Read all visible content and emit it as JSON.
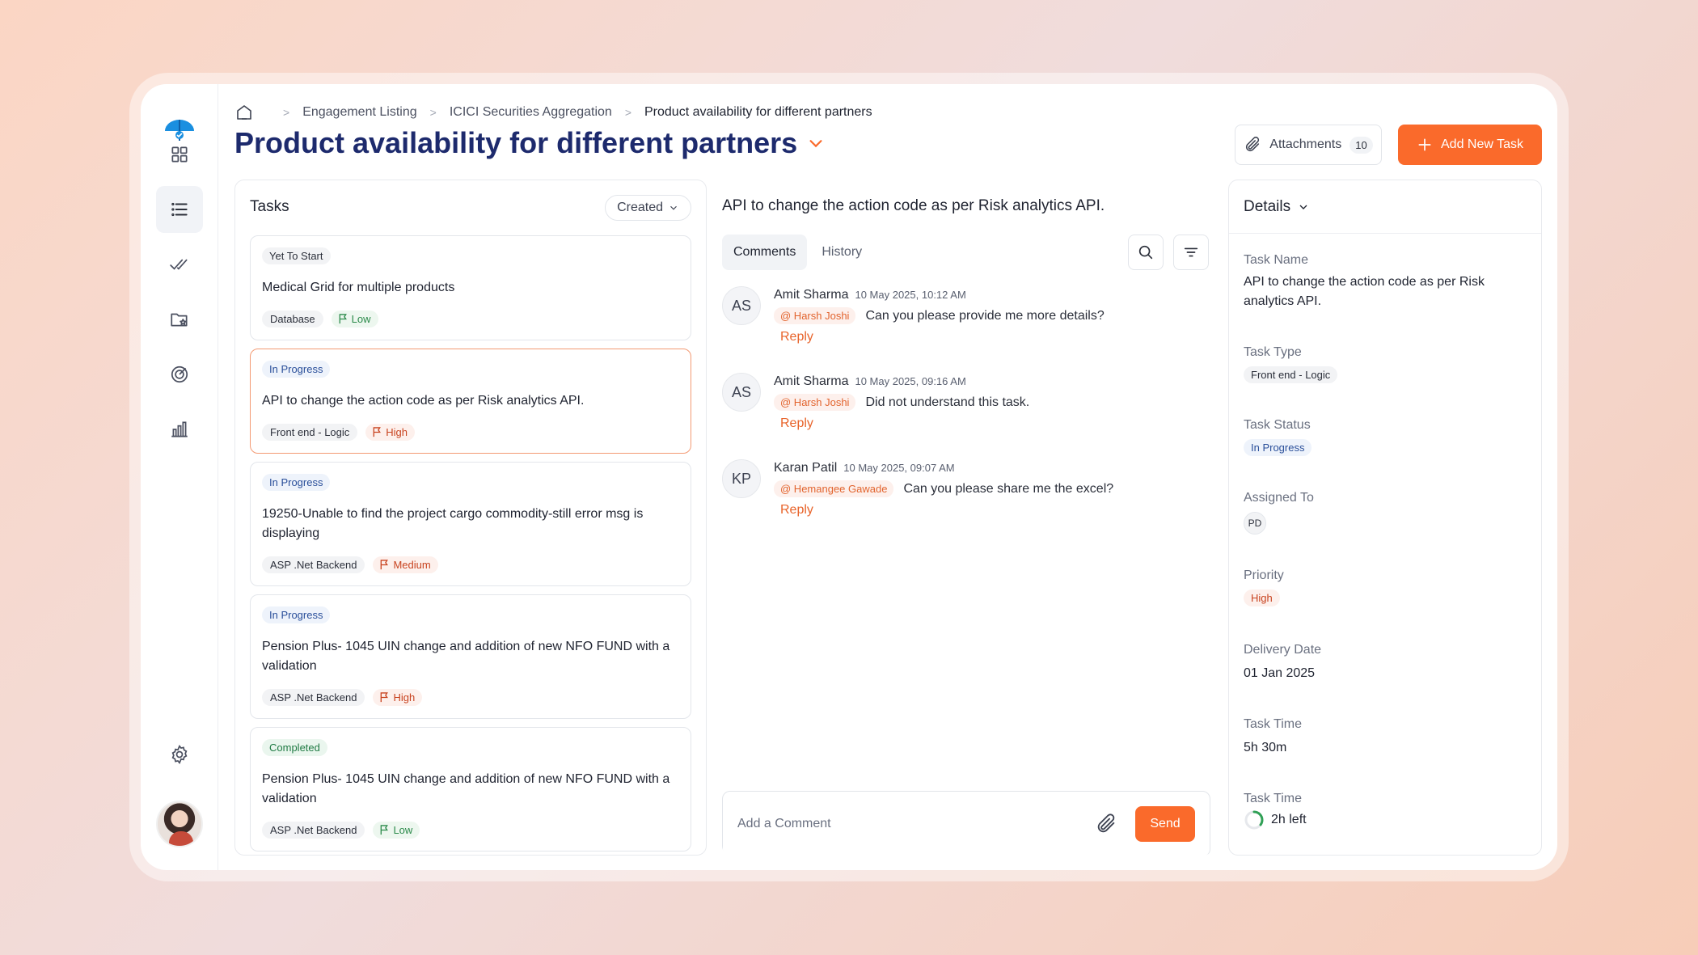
{
  "breadcrumb": [
    "Engagement Listing",
    "ICICI Securities Aggregation",
    "Product availability for different partners"
  ],
  "page_title": "Product availability for different partners",
  "header": {
    "attachments_label": "Attachments",
    "attachments_count": "10",
    "add_task_label": "Add New Task"
  },
  "tasks": {
    "title": "Tasks",
    "sort_label": "Created",
    "items": [
      {
        "status": "Yet To Start",
        "title": "Medical Grid for multiple products",
        "tag": "Database",
        "priority": "Low"
      },
      {
        "status": "In Progress",
        "title": "API to change the action code as per Risk analytics API.",
        "tag": "Front end - Logic",
        "priority": "High"
      },
      {
        "status": "In Progress",
        "title": "19250-Unable to find the project cargo commodity-still error msg is displaying",
        "tag": "ASP .Net Backend",
        "priority": "Medium"
      },
      {
        "status": "In Progress",
        "title": "Pension Plus- 1045 UIN change and addition of new NFO FUND with a validation",
        "tag": "ASP .Net Backend",
        "priority": "High"
      },
      {
        "status": "Completed",
        "title": "Pension Plus- 1045 UIN change and addition of new NFO FUND with a validation",
        "tag": "ASP .Net Backend",
        "priority": "Low"
      }
    ]
  },
  "comments_panel": {
    "title": "API to change the action code as per Risk analytics API.",
    "tabs": [
      "Comments",
      "History"
    ],
    "items": [
      {
        "initials": "AS",
        "author": "Amit Sharma",
        "time": "10 May 2025, 10:12 AM",
        "mention": "@ Harsh Joshi",
        "text": "Can you please provide me more details?",
        "reply": "Reply"
      },
      {
        "initials": "AS",
        "author": "Amit Sharma",
        "time": "10 May 2025, 09:16 AM",
        "mention": "@ Harsh Joshi",
        "text": "Did not understand this task.",
        "reply": "Reply"
      },
      {
        "initials": "KP",
        "author": "Karan Patil",
        "time": "10 May 2025, 09:07 AM",
        "mention": "@ Hemangee Gawade",
        "text": "Can you please share me the excel?",
        "reply": "Reply"
      }
    ],
    "composer_placeholder": "Add a Comment",
    "send_label": "Send"
  },
  "details": {
    "title": "Details",
    "task_name_label": "Task Name",
    "task_name": "API to change the action code as per Risk analytics API.",
    "task_type_label": "Task Type",
    "task_type": "Front end - Logic",
    "task_status_label": "Task Status",
    "task_status": "In Progress",
    "assigned_label": "Assigned To",
    "assigned": "PD",
    "priority_label": "Priority",
    "priority": "High",
    "delivery_label": "Delivery Date",
    "delivery": "01 Jan 2025",
    "task_time_label": "Task Time",
    "task_time": "5h 30m",
    "task_time2_label": "Task Time",
    "time_left": "2h left",
    "time_left_progress": 0.35
  },
  "colors": {
    "accent": "#fa6a2b",
    "title": "#1d2a6d",
    "link": "#e8632a"
  }
}
